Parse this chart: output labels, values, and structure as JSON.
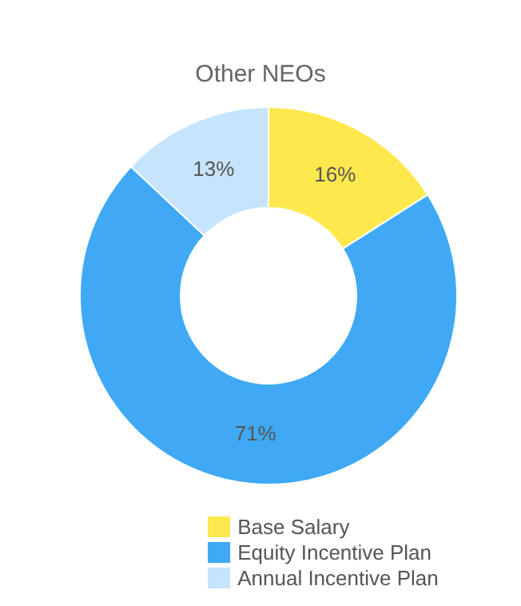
{
  "chart_data": {
    "type": "donut",
    "title": "Other NEOs",
    "categories": [
      "Base Salary",
      "Equity Incentive Plan",
      "Annual Incentive Plan"
    ],
    "values": [
      16,
      71,
      13
    ],
    "colors": [
      "#fde84e",
      "#3fa9f5",
      "#c6e4fb"
    ],
    "value_labels": [
      "16%",
      "71%",
      "13%"
    ],
    "legend": "bottom"
  }
}
